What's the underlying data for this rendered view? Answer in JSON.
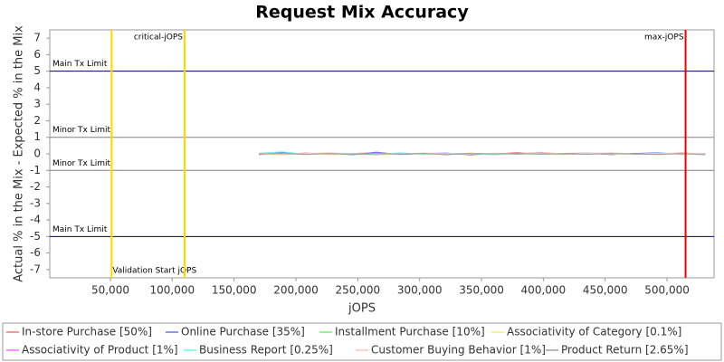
{
  "chart_data": {
    "type": "line",
    "title": "Request Mix Accuracy",
    "x_label": "jOPS",
    "y_label": "Actual % in the Mix - Expected % in the Mix",
    "xlim": [
      1000,
      538000
    ],
    "ylim": [
      -7.5,
      7.5
    ],
    "xticks": [
      {
        "value": 50000,
        "label": "50,000"
      },
      {
        "value": 100000,
        "label": "100,000"
      },
      {
        "value": 150000,
        "label": "150,000"
      },
      {
        "value": 200000,
        "label": "200,000"
      },
      {
        "value": 250000,
        "label": "250,000"
      },
      {
        "value": 300000,
        "label": "300,000"
      },
      {
        "value": 350000,
        "label": "350,000"
      },
      {
        "value": 400000,
        "label": "400,000"
      },
      {
        "value": 450000,
        "label": "450,000"
      },
      {
        "value": 500000,
        "label": "500,000"
      }
    ],
    "yticks": [
      -7,
      -6,
      -5,
      -4,
      -3,
      -2,
      -1,
      0,
      1,
      2,
      3,
      4,
      5,
      6,
      7
    ],
    "reference_lines": [
      {
        "label": "Main Tx Limit",
        "y": 5,
        "color": "#000066"
      },
      {
        "label": "Minor Tx Limit",
        "y": 1,
        "color": "#808080"
      },
      {
        "label": "Minor Tx Limit",
        "y": -1,
        "color": "#808080"
      },
      {
        "label": "Main Tx Limit",
        "y": -5,
        "color": "#000066"
      }
    ],
    "markers": [
      {
        "label": "Validation Start jOPS",
        "x": 51000,
        "color": "#ffd700"
      },
      {
        "label": "critical-jOPS",
        "x": 110000,
        "color": "#ffd700"
      },
      {
        "label": "max-jOPS",
        "x": 515000,
        "color": "#ee0000"
      }
    ],
    "x": [
      170000,
      189000,
      208000,
      227000,
      246000,
      265000,
      284000,
      303000,
      322000,
      341000,
      360000,
      379000,
      398000,
      417000,
      436000,
      455000,
      474000,
      493000,
      512000,
      531000
    ],
    "series": [
      {
        "name": "In-store Purchase [50%]",
        "color": "#ff7070",
        "values": [
          0.03,
          -0.02,
          0.05,
          -0.04,
          0.02,
          0.06,
          -0.03,
          0.01,
          -0.05,
          0.04,
          -0.02,
          0.08,
          -0.03,
          0.02,
          0.05,
          -0.04,
          0.03,
          -0.02,
          0.06,
          -0.03
        ]
      },
      {
        "name": "Online Purchase [35%]",
        "color": "#7070ff",
        "values": [
          -0.05,
          0.08,
          -0.02,
          0.03,
          -0.06,
          0.1,
          -0.04,
          0.02,
          0.05,
          -0.07,
          0.03,
          -0.02,
          0.06,
          -0.03,
          0.04,
          -0.05,
          0.02,
          0.07,
          -0.04,
          0.02
        ]
      },
      {
        "name": "Installment Purchase [10%]",
        "color": "#70f070",
        "values": [
          0.01,
          0.02,
          -0.01,
          0,
          0.02,
          -0.02,
          0.01,
          0,
          -0.01,
          0.02,
          0.01,
          -0.02,
          0,
          0.01,
          -0.01,
          0.02,
          0,
          -0.01,
          0.01,
          0
        ]
      },
      {
        "name": "Associativity of Category [0.1%]",
        "color": "#f0f070",
        "values": [
          -0.01,
          -0.06,
          0.02,
          -0.05,
          -0.03,
          -0.08,
          0.03,
          -0.04,
          -0.02,
          0.05,
          -0.06,
          0.02,
          -0.03,
          -0.05,
          0.03,
          -0.02,
          -0.04,
          0.01,
          -0.03,
          -0.02
        ]
      },
      {
        "name": "Associativity of Product [1%]",
        "color": "#f070f0",
        "values": [
          0.02,
          -0.01,
          0.03,
          0,
          -0.02,
          0.01,
          0.02,
          -0.01,
          0,
          0.02,
          -0.02,
          0.01,
          0.03,
          -0.01,
          0,
          0.02,
          -0.01,
          0.01,
          0,
          0.01
        ]
      },
      {
        "name": "Business Report [0.25%]",
        "color": "#70f0f0",
        "values": [
          0.04,
          0.12,
          -0.03,
          0.05,
          0.02,
          -0.04,
          0.06,
          -0.02,
          0.03,
          0.01,
          -0.05,
          0.04,
          0.02,
          -0.03,
          0.05,
          0.01,
          -0.02,
          0.04,
          0.03,
          -0.01
        ]
      },
      {
        "name": "Customer Buying Behavior [1%]",
        "color": "#ffc0c0",
        "values": [
          0.05,
          -0.03,
          0.02,
          0.06,
          -0.04,
          0.03,
          -0.02,
          0.05,
          0.01,
          -0.03,
          0.04,
          0.02,
          0.1,
          -0.02,
          0.03,
          0.06,
          -0.01,
          0.02,
          0.04,
          0.01
        ]
      },
      {
        "name": "Product Return [2.65%]",
        "color": "#a0a0a0",
        "values": [
          -0.02,
          0.03,
          -0.04,
          0.02,
          -0.03,
          0.01,
          -0.02,
          0.03,
          -0.05,
          0.02,
          -0.01,
          0.03,
          -0.02,
          0.01,
          -0.03,
          0.02,
          -0.01,
          -0.04,
          0.02,
          -0.06
        ]
      }
    ]
  }
}
